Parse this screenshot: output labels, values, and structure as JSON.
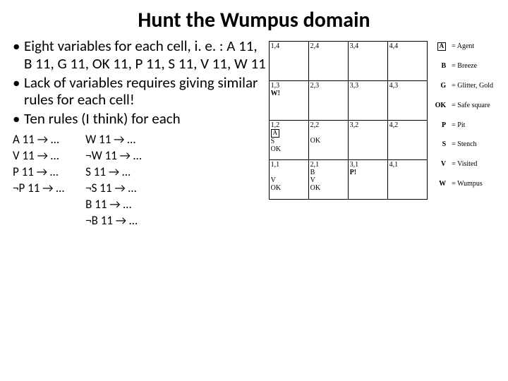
{
  "title": "Hunt the Wumpus domain",
  "bullets": {
    "b1": "Eight variables for each cell, i. e. : A 11, B 11, G 11, OK 11, P 11, S 11, V 11, W 11",
    "b2": "Lack of variables requires giving similar rules for each cell!",
    "b3": "Ten rules (I think) for each"
  },
  "rules": {
    "col1": "A 11 → …\nV 11 → …\nP 11 → …\n¬P 11 → …",
    "col2": "W 11 → …\n¬W 11 → …\nS 11 → …\n¬S 11 → …\nB 11 → …\n¬B 11 → …"
  },
  "grid": {
    "r0": {
      "c0": {
        "coord": "1,4"
      },
      "c1": {
        "coord": "2,4"
      },
      "c2": {
        "coord": "3,4"
      },
      "c3": {
        "coord": "4,4"
      }
    },
    "r1": {
      "c0": {
        "coord": "1,3",
        "text": "W!"
      },
      "c1": {
        "coord": "2,3"
      },
      "c2": {
        "coord": "3,3"
      },
      "c3": {
        "coord": "4,3"
      }
    },
    "r2": {
      "c0": {
        "coord": "1,2",
        "boxed": "A",
        "below": "S\nOK"
      },
      "c1": {
        "coord": "2,2",
        "below": "OK"
      },
      "c2": {
        "coord": "3,2"
      },
      "c3": {
        "coord": "4,2"
      }
    },
    "r3": {
      "c0": {
        "coord": "1,1",
        "below": "V\nOK"
      },
      "c1": {
        "coord": "2,1",
        "below": "B\nV\nOK"
      },
      "c2": {
        "coord": "3,1",
        "text": "P!"
      },
      "c3": {
        "coord": "4,1"
      }
    }
  },
  "legend": {
    "items": [
      {
        "sym": "A",
        "desc": "= Agent",
        "boxed": true
      },
      {
        "sym": "B",
        "desc": "= Breeze"
      },
      {
        "sym": "G",
        "desc": "= Glitter, Gold"
      },
      {
        "sym": "OK",
        "desc": "= Safe square"
      },
      {
        "sym": "P",
        "desc": "= Pit"
      },
      {
        "sym": "S",
        "desc": "= Stench"
      },
      {
        "sym": "V",
        "desc": "= Visited"
      },
      {
        "sym": "W",
        "desc": "= Wumpus"
      }
    ]
  }
}
